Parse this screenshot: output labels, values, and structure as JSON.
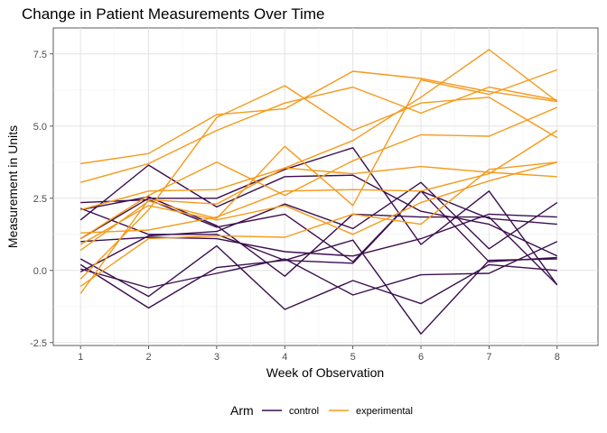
{
  "chart_data": {
    "type": "line",
    "title": "Change in Patient Measurements Over Time",
    "xlabel": "Week of Observation",
    "ylabel": "Measurement in Units",
    "x": [
      1,
      2,
      3,
      4,
      5,
      6,
      7,
      8
    ],
    "x_ticks": [
      "1",
      "2",
      "3",
      "4",
      "5",
      "6",
      "7",
      "8"
    ],
    "y_ticks": [
      -2.5,
      0.0,
      2.5,
      5.0,
      7.5
    ],
    "y_tick_labels": [
      "-2.5",
      "0.0",
      "2.5",
      "5.0",
      "7.5"
    ],
    "xlim": [
      0.6,
      8.6
    ],
    "ylim": [
      -2.6,
      8.4
    ],
    "grid": true,
    "legend": {
      "title": "Arm",
      "position": "bottom",
      "entries": [
        {
          "label": "control",
          "color": "#3b0f4f"
        },
        {
          "label": "experimental",
          "color": "#f59a1a"
        }
      ]
    },
    "series": [
      {
        "group": "control",
        "values": [
          0.2,
          -1.3,
          0.1,
          0.35,
          0.25,
          2.75,
          0.3,
          0.45
        ]
      },
      {
        "group": "control",
        "values": [
          2.35,
          2.45,
          1.5,
          1.95,
          0.3,
          2.75,
          1.8,
          1.6
        ]
      },
      {
        "group": "control",
        "values": [
          1.1,
          2.5,
          2.5,
          3.5,
          4.25,
          0.9,
          2.75,
          -0.5
        ]
      },
      {
        "group": "control",
        "values": [
          1.0,
          1.15,
          1.1,
          0.65,
          0.5,
          1.1,
          1.95,
          1.85
        ]
      },
      {
        "group": "control",
        "values": [
          -0.05,
          1.2,
          1.35,
          2.3,
          1.45,
          3.05,
          0.75,
          2.35
        ]
      },
      {
        "group": "control",
        "values": [
          1.75,
          3.65,
          2.2,
          3.25,
          3.3,
          2.05,
          1.6,
          0.5
        ]
      },
      {
        "group": "control",
        "values": [
          2.15,
          1.25,
          1.25,
          0.35,
          1.05,
          -2.2,
          0.35,
          0.4
        ]
      },
      {
        "group": "control",
        "values": [
          0.4,
          -0.9,
          0.85,
          -1.35,
          -0.35,
          -1.15,
          0.2,
          0.0
        ]
      },
      {
        "group": "control",
        "values": [
          0.05,
          -0.6,
          -0.1,
          0.4,
          -0.85,
          -0.15,
          -0.1,
          1.0
        ]
      },
      {
        "group": "control",
        "values": [
          2.1,
          2.55,
          1.55,
          -0.2,
          1.95,
          1.85,
          1.85,
          -0.5
        ]
      },
      {
        "group": "experimental",
        "values": [
          3.7,
          4.05,
          5.4,
          5.6,
          6.9,
          6.65,
          6.2,
          5.85
        ]
      },
      {
        "group": "experimental",
        "values": [
          3.05,
          3.7,
          4.85,
          5.8,
          6.35,
          5.45,
          6.35,
          5.9
        ]
      },
      {
        "group": "experimental",
        "values": [
          1.1,
          2.6,
          3.75,
          2.6,
          3.8,
          4.7,
          4.65,
          5.65
        ]
      },
      {
        "group": "experimental",
        "values": [
          0.7,
          2.4,
          1.8,
          4.3,
          2.25,
          6.6,
          6.1,
          6.95
        ]
      },
      {
        "group": "experimental",
        "values": [
          -0.3,
          2.1,
          5.3,
          6.4,
          4.85,
          5.8,
          6.0,
          4.6
        ]
      },
      {
        "group": "experimental",
        "values": [
          -0.8,
          2.45,
          2.3,
          3.55,
          4.5,
          6.0,
          7.65,
          5.85
        ]
      },
      {
        "group": "experimental",
        "values": [
          1.3,
          1.4,
          1.85,
          2.75,
          2.8,
          2.75,
          3.35,
          4.85
        ]
      },
      {
        "group": "experimental",
        "values": [
          2.1,
          2.75,
          2.8,
          3.55,
          3.35,
          3.6,
          3.4,
          3.25
        ]
      },
      {
        "group": "experimental",
        "values": [
          0.9,
          2.25,
          1.75,
          2.25,
          1.25,
          2.35,
          3.1,
          3.75
        ]
      },
      {
        "group": "experimental",
        "values": [
          -0.55,
          1.1,
          1.2,
          1.15,
          1.95,
          1.6,
          3.5,
          3.75
        ]
      }
    ]
  }
}
